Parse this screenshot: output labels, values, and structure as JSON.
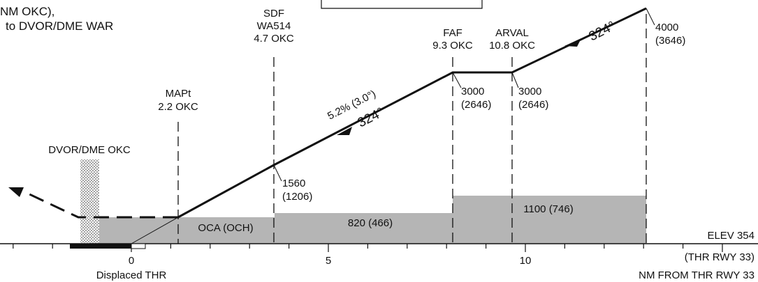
{
  "route_text": {
    "line1": "NM OKC),",
    "line2": "to DVOR/DME WAR"
  },
  "fixes": {
    "sdf": {
      "name": "SDF",
      "ident": "WA514",
      "dist": "4.7 OKC"
    },
    "faf": {
      "name": "FAF",
      "dist": "9.3 OKC"
    },
    "arval": {
      "name": "ARVAL",
      "dist": "10.8 OKC"
    },
    "mapt": {
      "name": "MAPt",
      "dist": "2.2 OKC"
    },
    "dvor": {
      "name": "DVOR/DME OKC"
    }
  },
  "altitudes": {
    "sdf": {
      "alt": "1560",
      "height": "(1206)"
    },
    "faf": {
      "alt": "3000",
      "height": "(2646)"
    },
    "arval": {
      "alt": "3000",
      "height": "(2646)"
    },
    "iaf": {
      "alt": "4000",
      "height": "(3646)"
    }
  },
  "glidepath": {
    "gradient": "5.2% (3.0°)",
    "course": "324°",
    "course2": "324°"
  },
  "oca": {
    "label": "OCA (OCH)",
    "seg2": "820 (466)",
    "seg3": "1100 (746)",
    "colour": "#b5b5b5"
  },
  "axis": {
    "ticks": [
      "0",
      "5",
      "10"
    ],
    "elev": "ELEV  354",
    "thr": "(THR RWY 33)",
    "units": "NM FROM THR RWY 33",
    "displaced": "Displaced THR"
  }
}
